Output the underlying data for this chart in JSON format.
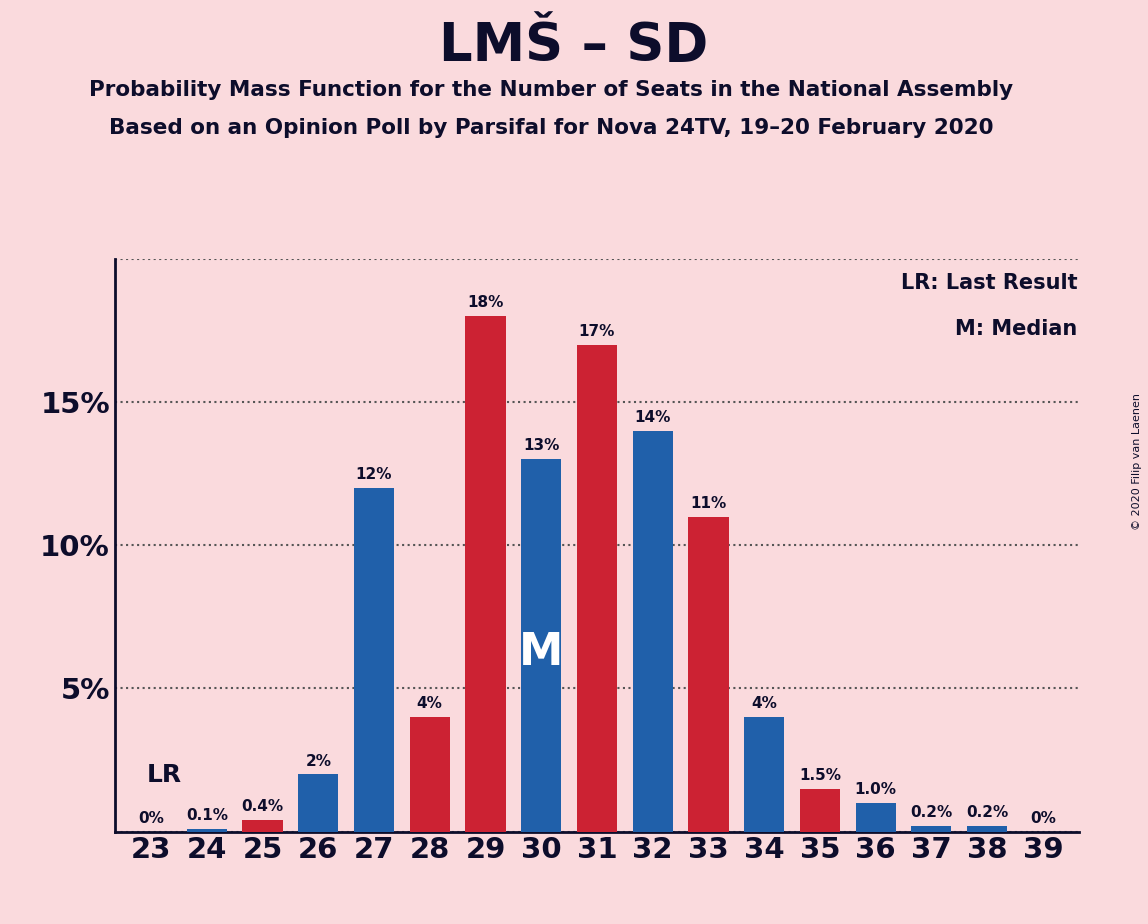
{
  "title": "LMŠ – SD",
  "subtitle1": "Probability Mass Function for the Number of Seats in the National Assembly",
  "subtitle2": "Based on an Opinion Poll by Parsifal for Nova 24TV, 19–20 February 2020",
  "copyright": "© 2020 Filip van Laenen",
  "seats": [
    23,
    24,
    25,
    26,
    27,
    28,
    29,
    30,
    31,
    32,
    33,
    34,
    35,
    36,
    37,
    38,
    39
  ],
  "bar_values": [
    0.0,
    0.1,
    0.4,
    2.0,
    12.0,
    4.0,
    18.0,
    13.0,
    17.0,
    14.0,
    11.0,
    4.0,
    1.5,
    1.0,
    0.2,
    0.2,
    0.0
  ],
  "bar_colors": [
    "#2060aa",
    "#2060aa",
    "#cc2233",
    "#2060aa",
    "#2060aa",
    "#cc2233",
    "#cc2233",
    "#2060aa",
    "#cc2233",
    "#2060aa",
    "#cc2233",
    "#2060aa",
    "#cc2233",
    "#2060aa",
    "#2060aa",
    "#2060aa",
    "#2060aa"
  ],
  "bar_labels": [
    "0%",
    "0.1%",
    "0.4%",
    "2%",
    "12%",
    "4%",
    "18%",
    "13%",
    "17%",
    "14%",
    "11%",
    "4%",
    "1.5%",
    "1.0%",
    "0.2%",
    "0.2%",
    "0%"
  ],
  "bg_color": "#fadadd",
  "text_color": "#0d0d2b",
  "median_seat": 30,
  "median_seat_idx": 7,
  "lr_seat_idx": 0,
  "ylim_max": 20,
  "ytick_vals": [
    0,
    5,
    10,
    15,
    20
  ],
  "ytick_labels": [
    "",
    "5%",
    "10%",
    "15%",
    ""
  ]
}
